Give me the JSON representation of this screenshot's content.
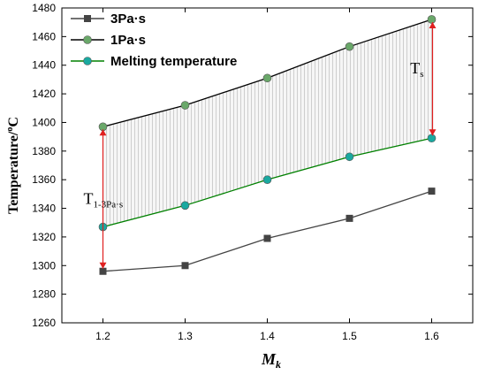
{
  "chart_data": {
    "type": "line",
    "xlabel_main": "M",
    "xlabel_sub": "k",
    "ylabel_main": "Temperature/",
    "ylabel_sup": "o",
    "ylabel_unit": "C",
    "xlim": [
      1.15,
      1.65
    ],
    "ylim": [
      1260,
      1480
    ],
    "x_ticks": [
      "1.2",
      "1.3",
      "1.4",
      "1.5",
      "1.6"
    ],
    "y_ticks": [
      "1260",
      "1280",
      "1300",
      "1320",
      "1340",
      "1360",
      "1380",
      "1400",
      "1420",
      "1440",
      "1460",
      "1480"
    ],
    "x": [
      1.2,
      1.3,
      1.4,
      1.5,
      1.6
    ],
    "series": [
      {
        "name": "3Pa·s",
        "values": [
          1296,
          1300,
          1319,
          1333,
          1352
        ],
        "color": "#444444",
        "marker": "square"
      },
      {
        "name": "1Pa·s",
        "values": [
          1397,
          1412,
          1431,
          1453,
          1472
        ],
        "color": "#000000",
        "marker": "circle",
        "marker_color": "#6aa86a"
      },
      {
        "name": "Melting temperature",
        "values": [
          1327,
          1342,
          1360,
          1376,
          1389
        ],
        "color": "#008000",
        "marker": "circle",
        "marker_color": "#1aa9a0"
      }
    ],
    "legend_position": "top-left",
    "grid": false,
    "shaded_region": {
      "between": [
        "1Pa·s",
        "Melting temperature"
      ],
      "fill": "#e0e0e0",
      "style": "vertical-lines"
    },
    "annotations": [
      {
        "text": "T",
        "sub": "s",
        "x": 1.6,
        "from": 1389,
        "to": 1472
      },
      {
        "text": "T",
        "sub": "1-3Pa·s",
        "x": 1.2,
        "from": 1296,
        "to": 1397
      }
    ],
    "annotation_color": "#e02020"
  }
}
